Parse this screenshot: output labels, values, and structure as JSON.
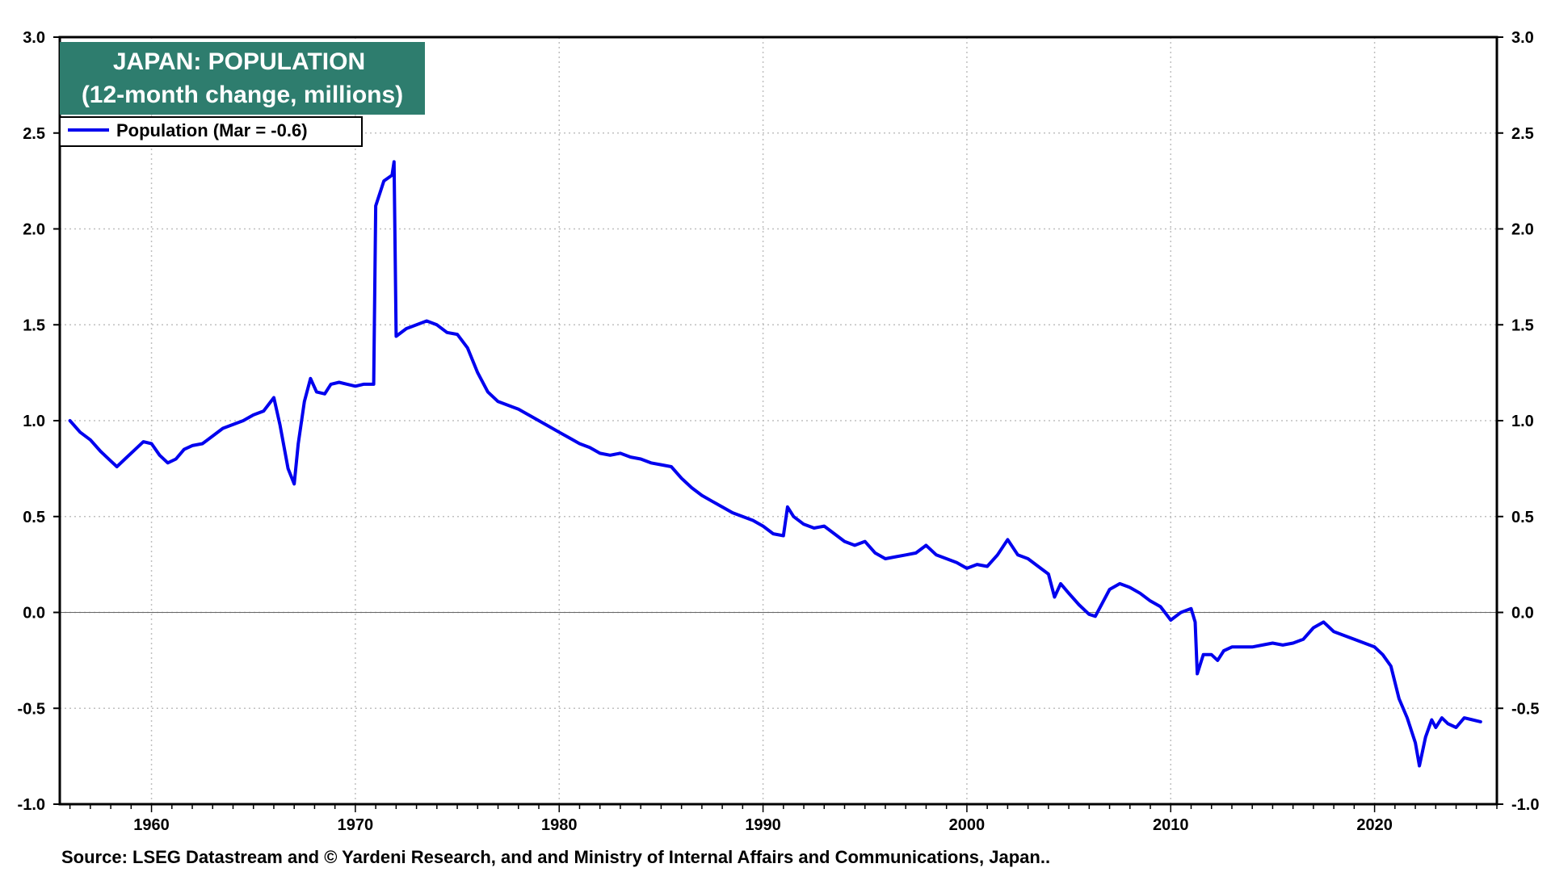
{
  "chart_data": {
    "type": "line",
    "title_lines": [
      "JAPAN: POPULATION",
      "(12-month change, millions)"
    ],
    "legend": "Population (Mar = -0.6)",
    "source": "Source: LSEG Datastream and © Yardeni Research, and  and Ministry of Internal Affairs and Communications, Japan..",
    "xlim": [
      1955.5,
      2026
    ],
    "ylim": [
      -1.0,
      3.0
    ],
    "x_ticks": [
      1960,
      1970,
      1980,
      1990,
      2000,
      2010,
      2020
    ],
    "x_tick_labels": [
      "1960",
      "1970",
      "1980",
      "1990",
      "2000",
      "2010",
      "2020"
    ],
    "y_ticks": [
      -1.0,
      -0.5,
      0.0,
      0.5,
      1.0,
      1.5,
      2.0,
      2.5,
      3.0
    ],
    "y_tick_labels": [
      "-1.0",
      "-0.5",
      "0.0",
      "0.5",
      "1.0",
      "1.5",
      "2.0",
      "2.5",
      "3.0"
    ],
    "grid": true,
    "zero_line": true,
    "legend_position": "top-left",
    "colors": {
      "series": "#0000ee",
      "title_bg": "#2e7d6e",
      "grid": "#bfbfbf"
    },
    "series": [
      {
        "name": "Population (Mar = -0.6)",
        "x": [
          1956.0,
          1956.5,
          1957.0,
          1957.5,
          1958.0,
          1958.3,
          1958.7,
          1959.2,
          1959.6,
          1960.0,
          1960.4,
          1960.8,
          1961.2,
          1961.6,
          1962.0,
          1962.5,
          1963.0,
          1963.5,
          1964.0,
          1964.5,
          1965.0,
          1965.5,
          1966.0,
          1966.3,
          1966.7,
          1967.0,
          1967.2,
          1967.5,
          1967.8,
          1968.1,
          1968.5,
          1968.8,
          1969.2,
          1969.6,
          1970.0,
          1970.4,
          1970.9,
          1971.0,
          1971.4,
          1971.8,
          1971.9,
          1972.0,
          1972.5,
          1973.0,
          1973.5,
          1974.0,
          1974.5,
          1975.0,
          1975.5,
          1976.0,
          1976.5,
          1977.0,
          1977.5,
          1978.0,
          1978.5,
          1979.0,
          1979.5,
          1980.0,
          1980.5,
          1981.0,
          1981.5,
          1982.0,
          1982.5,
          1983.0,
          1983.5,
          1984.0,
          1984.5,
          1985.0,
          1985.5,
          1986.0,
          1986.5,
          1987.0,
          1987.5,
          1988.0,
          1988.5,
          1989.0,
          1989.5,
          1990.0,
          1990.5,
          1991.0,
          1991.2,
          1991.5,
          1992.0,
          1992.5,
          1993.0,
          1993.5,
          1994.0,
          1994.5,
          1995.0,
          1995.5,
          1996.0,
          1996.5,
          1997.0,
          1997.5,
          1998.0,
          1998.5,
          1999.0,
          1999.5,
          2000.0,
          2000.5,
          2001.0,
          2001.5,
          2002.0,
          2002.5,
          2003.0,
          2003.5,
          2004.0,
          2004.3,
          2004.6,
          2005.0,
          2005.5,
          2006.0,
          2006.3,
          2006.7,
          2007.0,
          2007.5,
          2008.0,
          2008.5,
          2009.0,
          2009.5,
          2010.0,
          2010.5,
          2011.0,
          2011.2,
          2011.3,
          2011.6,
          2012.0,
          2012.3,
          2012.6,
          2013.0,
          2013.5,
          2014.0,
          2014.5,
          2015.0,
          2015.5,
          2016.0,
          2016.5,
          2017.0,
          2017.5,
          2018.0,
          2018.5,
          2019.0,
          2019.5,
          2020.0,
          2020.4,
          2020.8,
          2021.2,
          2021.6,
          2022.0,
          2022.2,
          2022.5,
          2022.8,
          2023.0,
          2023.3,
          2023.6,
          2024.0,
          2024.4,
          2024.8,
          2025.2
        ],
        "values": [
          1.0,
          0.94,
          0.9,
          0.84,
          0.79,
          0.76,
          0.8,
          0.85,
          0.89,
          0.88,
          0.82,
          0.78,
          0.8,
          0.85,
          0.87,
          0.88,
          0.92,
          0.96,
          0.98,
          1.0,
          1.03,
          1.05,
          1.12,
          0.98,
          0.75,
          0.67,
          0.88,
          1.1,
          1.22,
          1.15,
          1.14,
          1.19,
          1.2,
          1.19,
          1.18,
          1.19,
          1.19,
          2.12,
          2.25,
          2.28,
          2.35,
          1.44,
          1.48,
          1.5,
          1.52,
          1.5,
          1.46,
          1.45,
          1.38,
          1.25,
          1.15,
          1.1,
          1.08,
          1.06,
          1.03,
          1.0,
          0.97,
          0.94,
          0.91,
          0.88,
          0.86,
          0.83,
          0.82,
          0.83,
          0.81,
          0.8,
          0.78,
          0.77,
          0.76,
          0.7,
          0.65,
          0.61,
          0.58,
          0.55,
          0.52,
          0.5,
          0.48,
          0.45,
          0.41,
          0.4,
          0.55,
          0.5,
          0.46,
          0.44,
          0.45,
          0.41,
          0.37,
          0.35,
          0.37,
          0.31,
          0.28,
          0.29,
          0.3,
          0.31,
          0.35,
          0.3,
          0.28,
          0.26,
          0.23,
          0.25,
          0.24,
          0.3,
          0.38,
          0.3,
          0.28,
          0.24,
          0.2,
          0.08,
          0.15,
          0.1,
          0.04,
          -0.01,
          -0.02,
          0.06,
          0.12,
          0.15,
          0.13,
          0.1,
          0.06,
          0.03,
          -0.04,
          0.0,
          0.02,
          -0.05,
          -0.32,
          -0.22,
          -0.22,
          -0.25,
          -0.2,
          -0.18,
          -0.18,
          -0.18,
          -0.17,
          -0.16,
          -0.17,
          -0.16,
          -0.14,
          -0.08,
          -0.05,
          -0.1,
          -0.12,
          -0.14,
          -0.16,
          -0.18,
          -0.22,
          -0.28,
          -0.45,
          -0.55,
          -0.68,
          -0.8,
          -0.65,
          -0.56,
          -0.6,
          -0.55,
          -0.58,
          -0.6,
          -0.55,
          -0.56,
          -0.57
        ]
      }
    ]
  }
}
